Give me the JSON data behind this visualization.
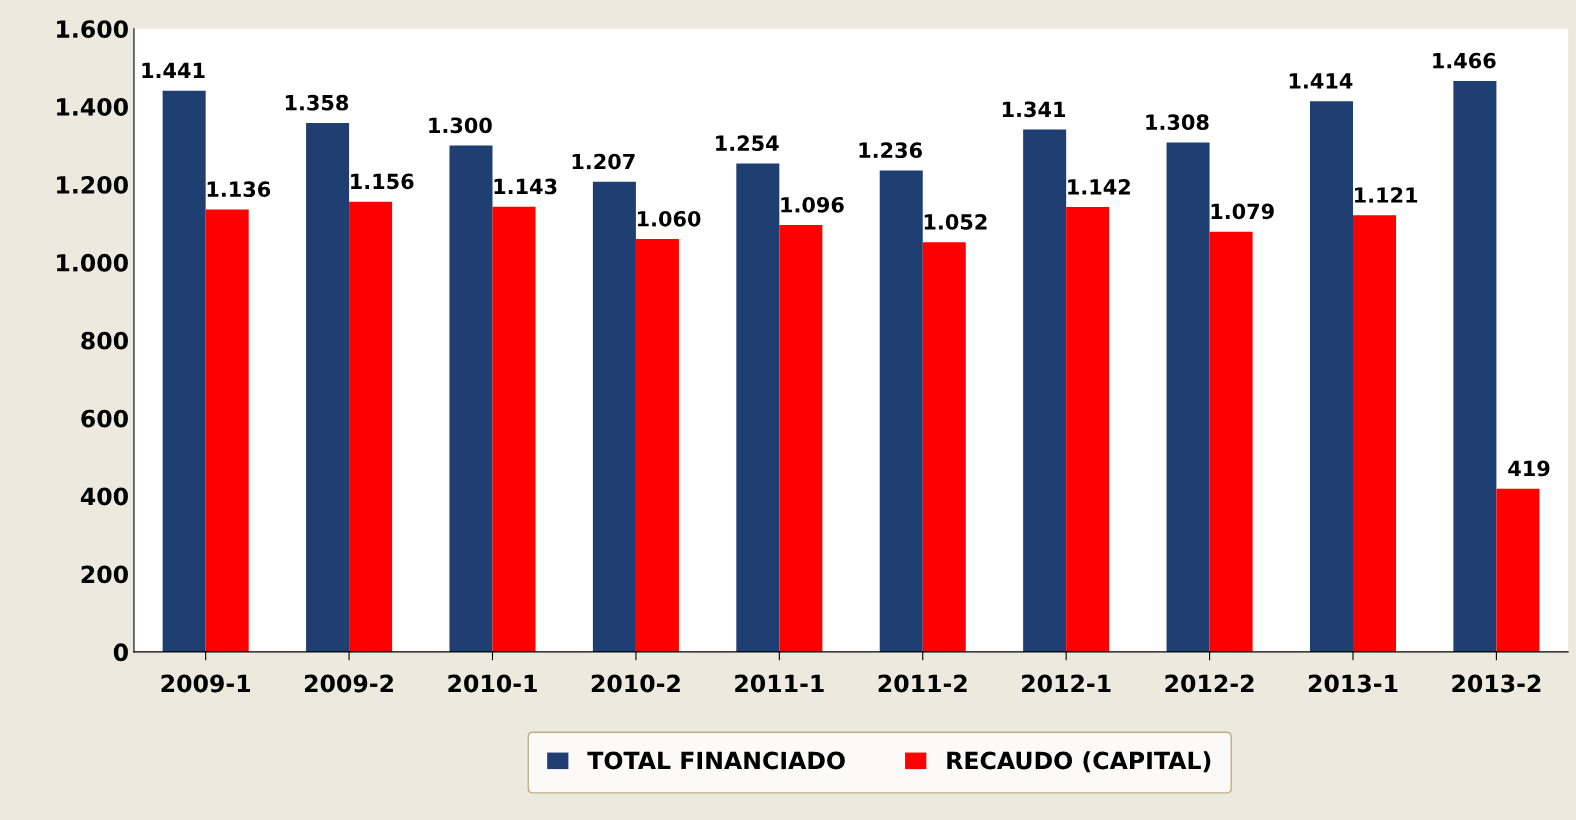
{
  "chart_data": {
    "type": "bar",
    "categories": [
      "2009-1",
      "2009-2",
      "2010-1",
      "2010-2",
      "2011-1",
      "2011-2",
      "2012-1",
      "2012-2",
      "2013-1",
      "2013-2"
    ],
    "series": [
      {
        "name": "TOTAL FINANCIADO",
        "color": "#1f3f73",
        "values": [
          1441,
          1358,
          1300,
          1207,
          1254,
          1236,
          1341,
          1308,
          1414,
          1466
        ],
        "value_labels": [
          "1.441",
          "1.358",
          "1.300",
          "1.207",
          "1.254",
          "1.236",
          "1.341",
          "1.308",
          "1.414",
          "1.466"
        ]
      },
      {
        "name": "RECAUDO (CAPITAL)",
        "color": "#ff0000",
        "values": [
          1136,
          1156,
          1143,
          1060,
          1096,
          1052,
          1142,
          1079,
          1121,
          419
        ],
        "value_labels": [
          "1.136",
          "1.156",
          "1.143",
          "1.060",
          "1.096",
          "1.052",
          "1.142",
          "1.079",
          "1.121",
          "419"
        ]
      }
    ],
    "ylim": [
      0,
      1600
    ],
    "yticks": [
      0,
      200,
      400,
      600,
      800,
      {
        "value": 1000,
        "label": "1.000"
      },
      {
        "value": 1200,
        "label": "1.200"
      },
      {
        "value": 1400,
        "label": "1.400"
      },
      {
        "value": 1600,
        "label": "1.600"
      }
    ],
    "grid": false,
    "legend": "bottom"
  }
}
